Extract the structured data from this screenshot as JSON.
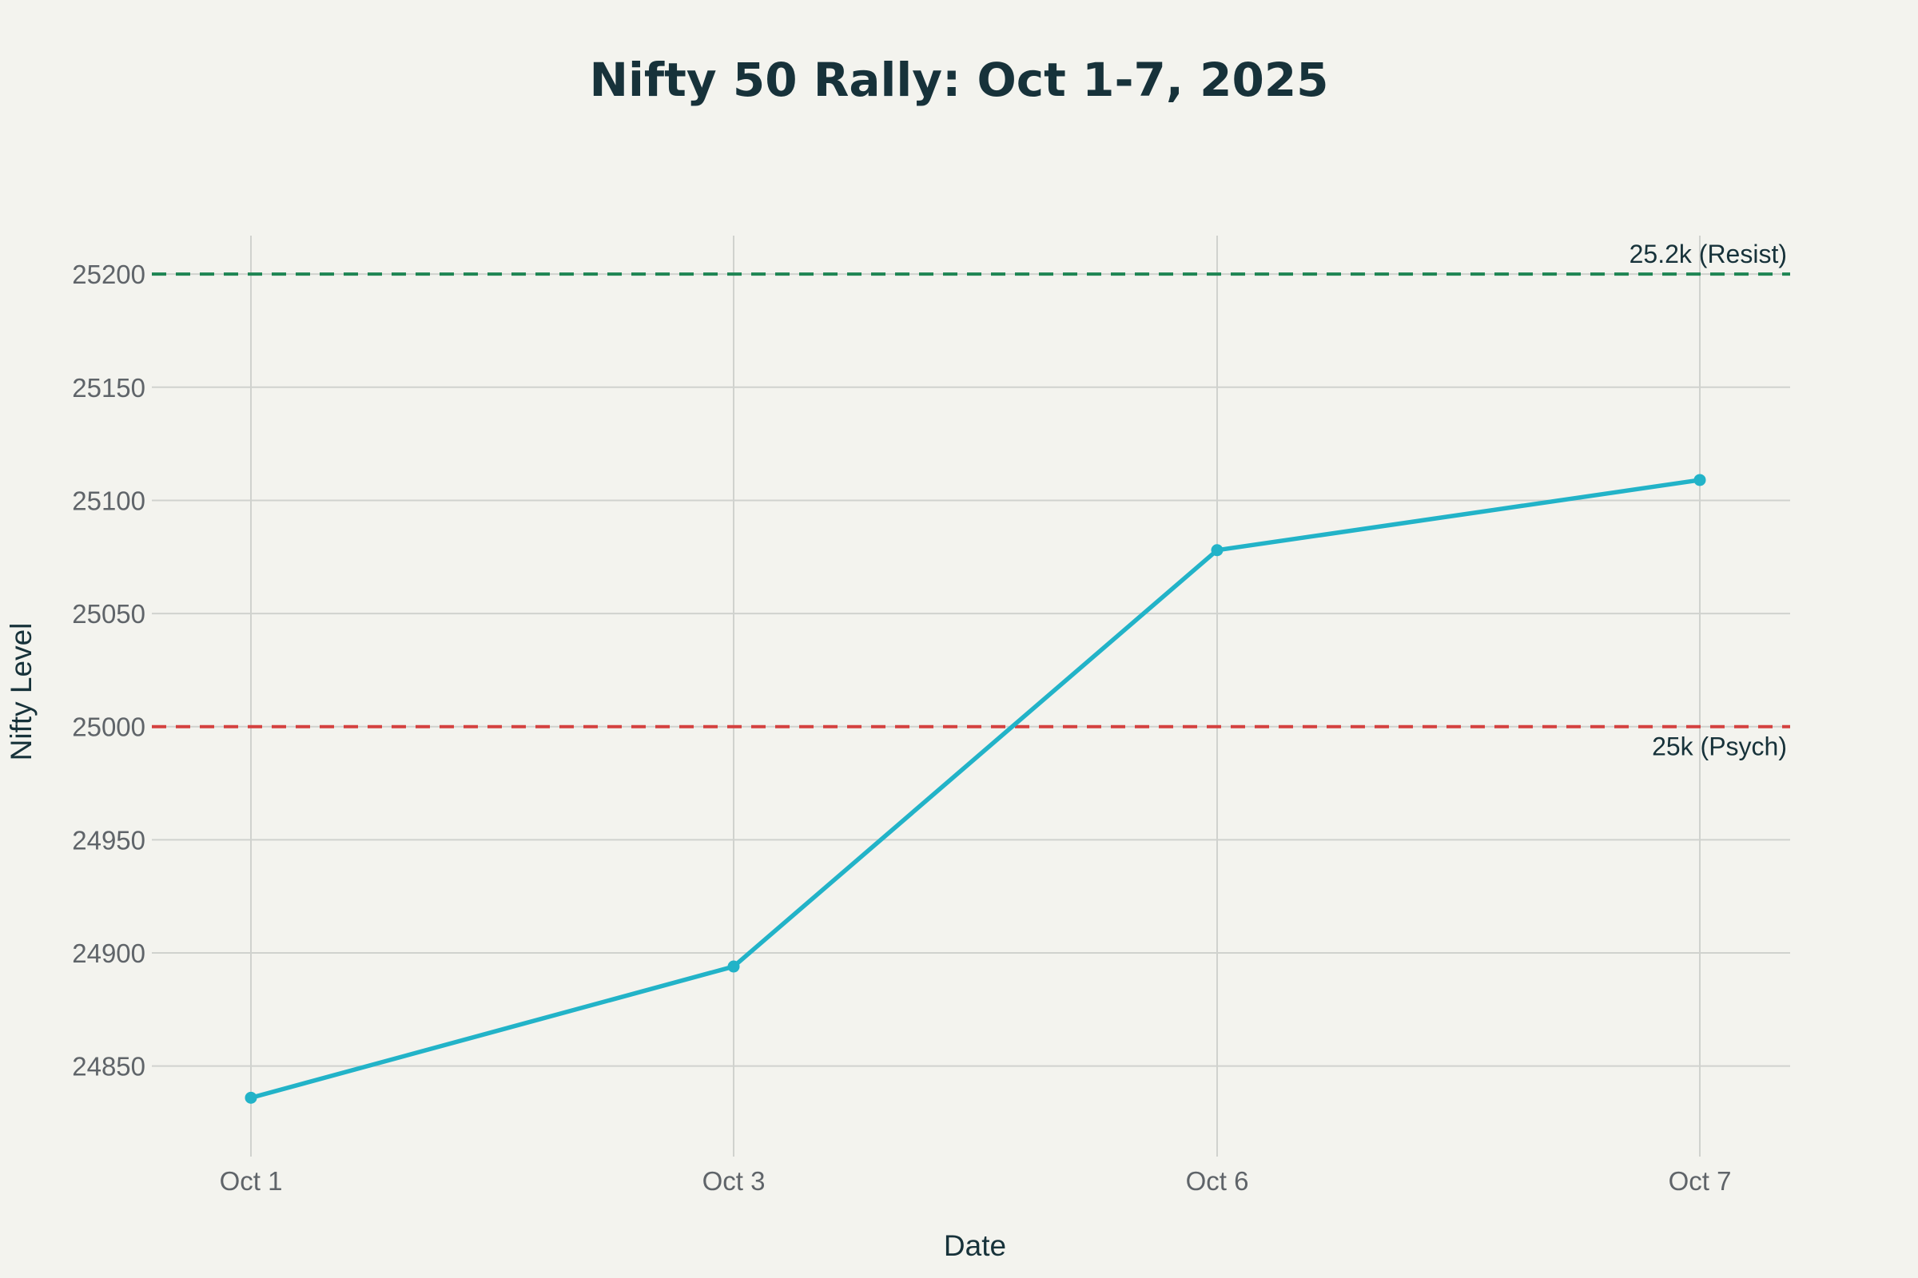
{
  "chart_data": {
    "type": "line",
    "title": "Nifty 50 Rally: Oct 1-7, 2025",
    "xlabel": "Date",
    "ylabel": "Nifty Level",
    "categories": [
      "Oct 1",
      "Oct 3",
      "Oct 6",
      "Oct 7"
    ],
    "series": [
      {
        "values": [
          24836,
          24894,
          25078,
          25109
        ]
      }
    ],
    "ylim": [
      24810,
      25217
    ],
    "yticks": [
      24850,
      24900,
      24950,
      25000,
      25050,
      25100,
      25150,
      25200
    ],
    "reference_lines": [
      {
        "value": 25200,
        "label": "25.2k (Resist)",
        "color": "#1e8553",
        "label_position": "above-right"
      },
      {
        "value": 25000,
        "label": "25k (Psych)",
        "color": "#d4413f",
        "label_position": "below-right"
      }
    ],
    "line_color": "#22b3c8",
    "grid": true,
    "legend": "none"
  }
}
